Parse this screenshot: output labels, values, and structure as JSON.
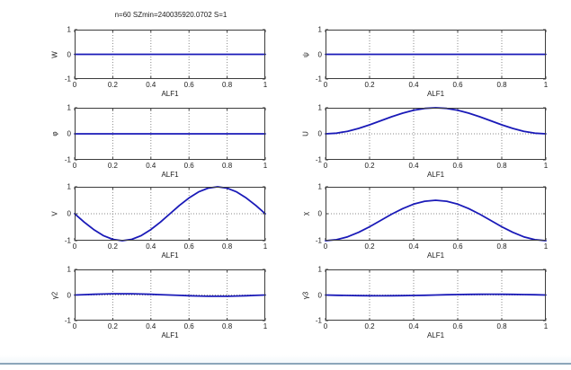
{
  "colors": {
    "line": "#1a1ab8",
    "frame": "#3c3c3c",
    "bottom_bar": "#8ba6ba"
  },
  "chart_data": {
    "type": "line",
    "title": "n=60 SZmin=240035920.0702 S=1",
    "xlabel": "ALF1",
    "xlim": [
      0,
      1
    ],
    "ylim": [
      -1,
      1
    ],
    "grid": "on",
    "legend_position": "none",
    "xticks": [
      "0",
      "0.2",
      "0.4",
      "0.6",
      "0.8",
      "1"
    ],
    "yticks": [
      "-1",
      "0",
      "1"
    ],
    "x": [
      0,
      0.05,
      0.1,
      0.15,
      0.2,
      0.25,
      0.3,
      0.35,
      0.4,
      0.45,
      0.5,
      0.55,
      0.6,
      0.65,
      0.7,
      0.75,
      0.8,
      0.85,
      0.9,
      0.95,
      1
    ],
    "subplots": [
      {
        "name": "w",
        "ylabel": "W",
        "y": [
          0,
          0,
          0,
          0,
          0,
          0,
          0,
          0,
          0,
          0,
          0,
          0,
          0,
          0,
          0,
          0,
          0,
          0,
          0,
          0,
          0
        ]
      },
      {
        "name": "psi",
        "ylabel": "ψ",
        "y": [
          0,
          0,
          0,
          0,
          0,
          0,
          0,
          0,
          0,
          0,
          0,
          0,
          0,
          0,
          0,
          0,
          0,
          0,
          0,
          0,
          0
        ]
      },
      {
        "name": "phi",
        "ylabel": "φ",
        "y": [
          0,
          0,
          0,
          0,
          0,
          0,
          0,
          0,
          0,
          0,
          0,
          0,
          0,
          0,
          0,
          0,
          0,
          0,
          0,
          0,
          0
        ]
      },
      {
        "name": "u",
        "ylabel": "U",
        "y": [
          0,
          0.024,
          0.095,
          0.206,
          0.345,
          0.5,
          0.655,
          0.794,
          0.905,
          0.976,
          1,
          0.976,
          0.905,
          0.794,
          0.655,
          0.5,
          0.345,
          0.206,
          0.095,
          0.024,
          0
        ]
      },
      {
        "name": "v",
        "ylabel": "V",
        "y": [
          0,
          -0.309,
          -0.588,
          -0.809,
          -0.951,
          -1,
          -0.951,
          -0.809,
          -0.588,
          -0.309,
          0,
          0.309,
          0.588,
          0.809,
          0.951,
          1,
          0.951,
          0.809,
          0.588,
          0.309,
          0
        ]
      },
      {
        "name": "chi",
        "ylabel": "χ",
        "y": [
          -1,
          -0.963,
          -0.857,
          -0.691,
          -0.482,
          -0.25,
          -0.018,
          0.191,
          0.357,
          0.463,
          0.5,
          0.463,
          0.357,
          0.191,
          -0.018,
          -0.25,
          -0.482,
          -0.691,
          -0.857,
          -0.963,
          -1
        ]
      },
      {
        "name": "gamma2",
        "ylabel": "γ2",
        "y": [
          0,
          0.015,
          0.029,
          0.04,
          0.048,
          0.05,
          0.048,
          0.04,
          0.029,
          0.015,
          0,
          -0.015,
          -0.029,
          -0.04,
          -0.048,
          -0.05,
          -0.048,
          -0.04,
          -0.029,
          -0.015,
          0
        ]
      },
      {
        "name": "gamma3",
        "ylabel": "γ3",
        "y": [
          0,
          -0.009,
          -0.018,
          -0.024,
          -0.029,
          -0.03,
          -0.029,
          -0.024,
          -0.018,
          -0.009,
          0,
          0.009,
          0.018,
          0.024,
          0.029,
          0.03,
          0.029,
          0.024,
          0.018,
          0.009,
          0
        ]
      }
    ]
  }
}
